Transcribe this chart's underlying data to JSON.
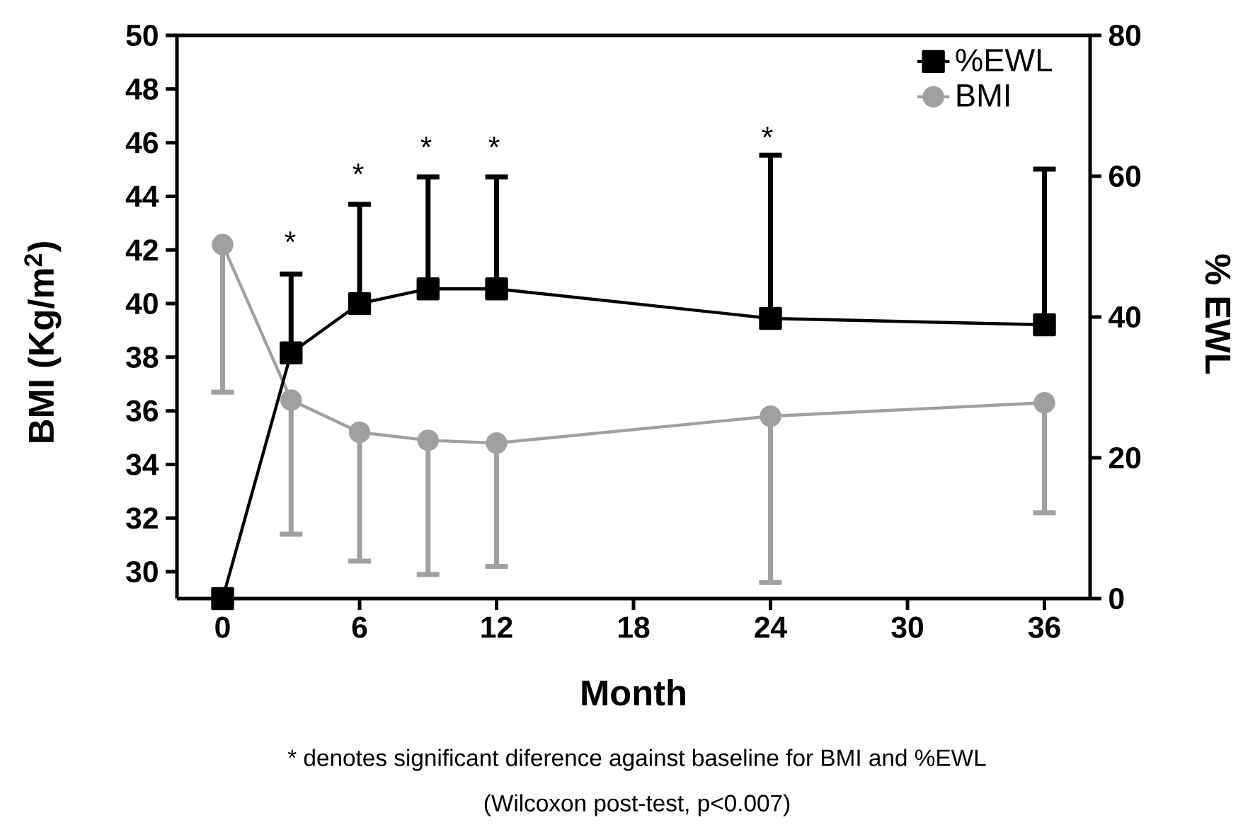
{
  "chart_data": {
    "type": "line",
    "xlabel": "Month",
    "ylabel": "BMI (Kg/m$^{2}$)",
    "y2label": "% EWL",
    "x": [
      0,
      3,
      6,
      9,
      12,
      24,
      36
    ],
    "xlim": [
      -2,
      38
    ],
    "xticks": [
      0,
      6,
      12,
      18,
      24,
      30,
      36
    ],
    "ylim": [
      29,
      50
    ],
    "yticks": [
      30,
      32,
      34,
      36,
      38,
      40,
      42,
      44,
      46,
      48,
      50
    ],
    "y2lim": [
      0,
      80
    ],
    "y2ticks": [
      0,
      20,
      40,
      60,
      80
    ],
    "series": [
      {
        "name": "%EWL",
        "color": "#000000",
        "axis": "y2",
        "marker": "square",
        "values": [
          0,
          34.9,
          41.9,
          44.0,
          44.0,
          39.8,
          38.9
        ],
        "errors": [
          null,
          [
            34.9,
            46.1
          ],
          [
            41.9,
            56.0
          ],
          [
            44.0,
            59.9
          ],
          [
            44.0,
            59.9
          ],
          [
            39.8,
            63.0
          ],
          [
            38.9,
            61.0
          ]
        ]
      },
      {
        "name": "BMI",
        "color": "#a0a0a0",
        "axis": "y",
        "marker": "circle",
        "values": [
          42.2,
          36.4,
          35.2,
          34.9,
          34.8,
          35.8,
          36.3
        ],
        "errors": [
          [
            36.7,
            42.2
          ],
          [
            31.4,
            36.4
          ],
          [
            30.4,
            35.2
          ],
          [
            29.9,
            34.9
          ],
          [
            30.2,
            34.8
          ],
          [
            29.6,
            35.8
          ],
          [
            32.2,
            36.3
          ]
        ]
      }
    ],
    "legend": "top right",
    "line_style": "solid",
    "annotations": [
      "*",
      "*",
      "*",
      "*",
      "*",
      "* denotes significant diference against baseline for BMI and %EWL",
      "(Wilcoxon post-test, p<0.007)"
    ]
  }
}
